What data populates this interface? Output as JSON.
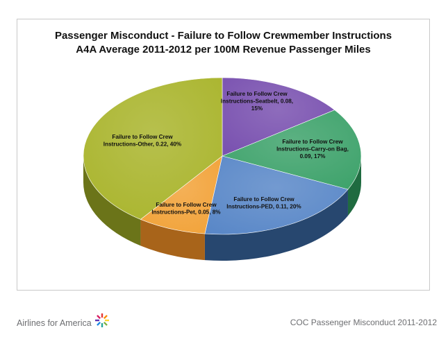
{
  "chart_data": {
    "type": "pie",
    "title_line1": "Passenger Misconduct  - Failure to Follow Crewmember Instructions",
    "title_line2": "A4A Average 2011-2012 per 100M Revenue Passenger Miles",
    "slices": [
      {
        "label_lines": [
          "Failure to Follow Crew",
          "Instructions-Seatbelt, 0.08,",
          "15%"
        ],
        "value": 0.08,
        "percent": 15,
        "color": "#7a52b0",
        "side": "#4d3078"
      },
      {
        "label_lines": [
          "Failure to Follow Crew",
          "Instructions-Carry-on Bag,",
          "0.09, 17%"
        ],
        "value": 0.09,
        "percent": 17,
        "color": "#3fa36c",
        "side": "#1f6b40"
      },
      {
        "label_lines": [
          "Failure to Follow Crew",
          "Instructions-PED, 0.11, 20%"
        ],
        "value": 0.11,
        "percent": 20,
        "color": "#5a88c8",
        "side": "#27476f"
      },
      {
        "label_lines": [
          "Failure to Follow Crew",
          "Instructions-Pet, 0.05, 8%"
        ],
        "value": 0.05,
        "percent": 8,
        "color": "#f2a33a",
        "side": "#a8641a"
      },
      {
        "label_lines": [
          "Failure to Follow Crew",
          "Instructions-Other, 0.22, 40%"
        ],
        "value": 0.22,
        "percent": 40,
        "color": "#aab52e",
        "side": "#6b7419"
      }
    ]
  },
  "footer": {
    "left_text": "Airlines for America",
    "right_text": "COC Passenger Misconduct 2011-2012"
  }
}
